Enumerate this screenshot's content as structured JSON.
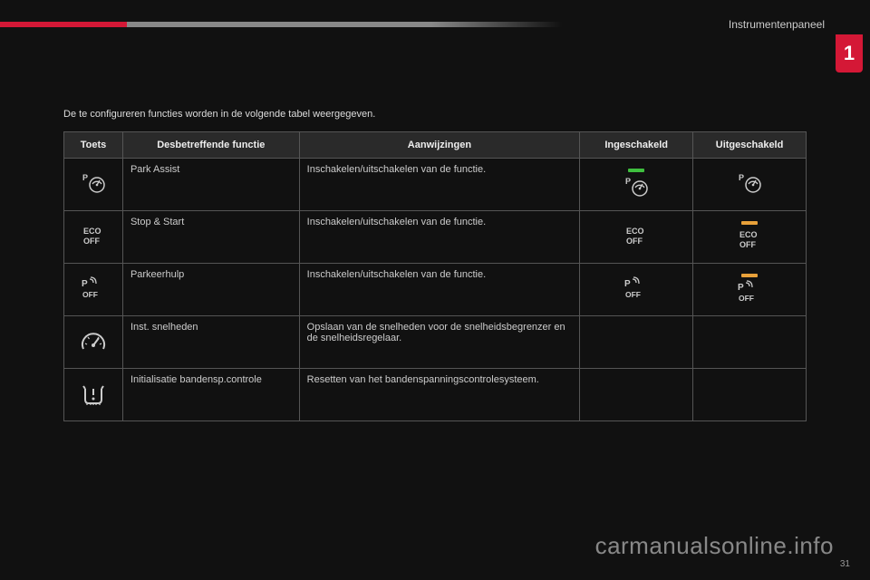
{
  "breadcrumb": "Instrumentenpaneel",
  "chapter": "1",
  "intro": "De te configureren functies worden in de volgende tabel weergegeven.",
  "headers": {
    "toets": "Toets",
    "func": "Desbetreffende functie",
    "aanw": "Aanwijzingen",
    "in": "Ingeschakeld",
    "uit": "Uitgeschakeld"
  },
  "rows": [
    {
      "icon": "park-assist",
      "func": "Park Assist",
      "aanw": "Inschakelen/uitschakelen van de functie.",
      "in_icon": "park-assist",
      "in_bar": "green",
      "uit_icon": "park-assist",
      "uit_bar": ""
    },
    {
      "icon": "eco-off",
      "func": "Stop & Start",
      "aanw": "Inschakelen/uitschakelen van de functie.",
      "in_icon": "eco-off",
      "in_bar": "",
      "uit_icon": "eco-off",
      "uit_bar": "orange"
    },
    {
      "icon": "park-off",
      "func": "Parkeerhulp",
      "aanw": "Inschakelen/uitschakelen van de functie.",
      "in_icon": "park-off",
      "in_bar": "",
      "uit_icon": "park-off",
      "uit_bar": "orange"
    },
    {
      "icon": "speedo",
      "func": "Inst. snelheden",
      "aanw": "Opslaan van de snelheden voor de snelheidsbegrenzer en de snelheidsregelaar.",
      "in_icon": "",
      "in_bar": "",
      "uit_icon": "",
      "uit_bar": ""
    },
    {
      "icon": "tyre",
      "func": "Initialisatie bandensp.controle",
      "aanw": "Resetten van het bandenspanningscontrolesysteem.",
      "in_icon": "",
      "in_bar": "",
      "uit_icon": "",
      "uit_bar": ""
    }
  ],
  "watermark": "carmanualsonline.info",
  "page_num": "31",
  "colors": {
    "accent_red": "#d41836",
    "bar_green": "#3fbf3f",
    "bar_orange": "#e8a13a",
    "bg": "#111111",
    "border": "#555555",
    "header_bg": "#2a2a2a",
    "text": "#cccccc"
  }
}
